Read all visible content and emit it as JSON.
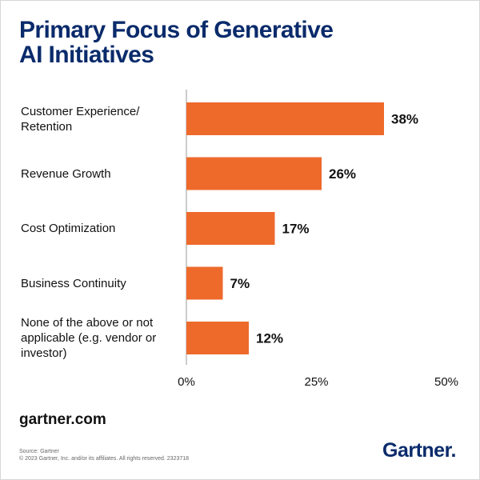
{
  "title_lines": [
    "Primary Focus of Generative",
    "AI Initiatives"
  ],
  "chart_data": {
    "type": "bar",
    "orientation": "horizontal",
    "title": "Primary Focus of Generative AI Initiatives",
    "categories": [
      [
        "Customer Experience/",
        "Retention"
      ],
      [
        "Revenue Growth"
      ],
      [
        "Cost Optimization"
      ],
      [
        "Business Continuity"
      ],
      [
        "None of the above or not",
        "applicable (e.g. vendor or",
        "investor)"
      ]
    ],
    "values": [
      38,
      26,
      17,
      7,
      12
    ],
    "value_labels": [
      "38%",
      "26%",
      "17%",
      "7%",
      "12%"
    ],
    "xlim": [
      0,
      50
    ],
    "x_ticks": [
      0,
      25,
      50
    ],
    "x_tick_labels": [
      "0%",
      "25%",
      "50%"
    ],
    "bar_color": "#ee6a2b",
    "grid": false
  },
  "footer": {
    "site": "gartner.com",
    "source": "Source: Gartner",
    "copyright": "© 2023 Gartner, Inc. and/or its affiliates. All rights reserved. 2323718",
    "logo_text": "Gartner",
    "logo_dot": "."
  },
  "colors": {
    "title": "#0a2b6b",
    "bars": "#ee6a2b",
    "axis": "#9a9a9a"
  }
}
